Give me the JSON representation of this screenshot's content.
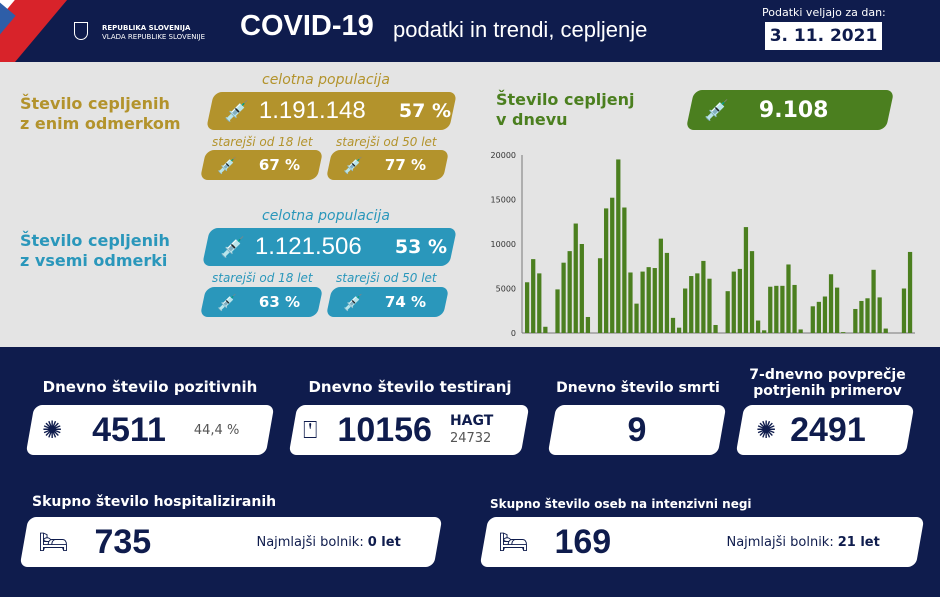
{
  "header": {
    "gov_line1": "REPUBLIKA SLOVENIJA",
    "gov_line2": "VLADA REPUBLIKE SLOVENIJE",
    "title": "COVID-19",
    "subtitle": "podatki in trendi, cepljenje",
    "date_label": "Podatki veljajo za dan:",
    "date": "3. 11. 2021"
  },
  "vacc_one": {
    "label1": "Število cepljenih",
    "label2": "z enim odmerkom",
    "total_caption": "celotna populacija",
    "total": "1.191.148",
    "total_pct": "57 %",
    "cap18": "starejši od 18 let",
    "pct18": "67 %",
    "cap50": "starejši od 50 let",
    "pct50": "77 %",
    "color": "#b3932c"
  },
  "vacc_full": {
    "label1": "Število cepljenih",
    "label2": "z vsemi odmerki",
    "total_caption": "celotna populacija",
    "total": "1.121.506",
    "total_pct": "53 %",
    "cap18": "starejši od 18 let",
    "pct18": "63 %",
    "cap50": "starejši od 50 let",
    "pct50": "74 %",
    "color": "#2a97bb"
  },
  "daily_vacc": {
    "label1": "Število cepljenj",
    "label2": "v dnevu",
    "value": "9.108",
    "color": "#4b7f1f"
  },
  "chart_data": {
    "type": "bar",
    "ylim": [
      0,
      20000
    ],
    "yticks": [
      "0",
      "5000",
      "10000",
      "15000",
      "20000"
    ],
    "values": [
      5700,
      8300,
      6700,
      700,
      0,
      4900,
      7900,
      9200,
      12300,
      10000,
      1800,
      0,
      8400,
      14000,
      15200,
      19500,
      14100,
      6800,
      3300,
      6900,
      7400,
      7300,
      10600,
      9000,
      1700,
      600,
      5000,
      6400,
      6700,
      8100,
      6100,
      900,
      0,
      4700,
      6900,
      7200,
      11900,
      9200,
      1400,
      300,
      5200,
      5300,
      5300,
      7700,
      5400,
      400,
      0,
      3000,
      3500,
      4100,
      6600,
      5100,
      100,
      0,
      2700,
      3600,
      3900,
      7100,
      4000,
      500,
      0,
      0,
      5000,
      9108
    ]
  },
  "stats": {
    "positives": {
      "title": "Dnevno število pozitivnih",
      "value": "4511",
      "pct": "44,4 %"
    },
    "tests": {
      "title": "Dnevno število testiranj",
      "value": "10156",
      "hagt_label": "HAGT",
      "hagt": "24732"
    },
    "deaths": {
      "title": "Dnevno število smrti",
      "value": "9"
    },
    "avg7": {
      "title1": "7-dnevno povprečje",
      "title2": "potrjenih primerov",
      "value": "2491"
    },
    "hosp": {
      "title": "Skupno število hospitaliziranih",
      "value": "735",
      "youngest_label": "Najmlajši bolnik:",
      "youngest": "0 let"
    },
    "icu": {
      "title": "Skupno število oseb na intenzivni negi",
      "value": "169",
      "youngest_label": "Najmlajši bolnik:",
      "youngest": "21 let"
    }
  }
}
